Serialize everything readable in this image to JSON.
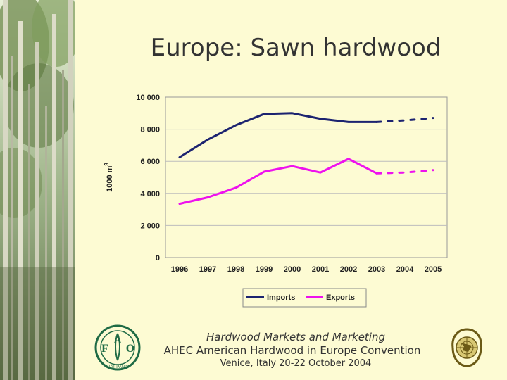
{
  "title": "Europe: Sawn hardwood",
  "footer": {
    "line1": "Hardwood Markets and Marketing",
    "line2": "AHEC American Hardwood in Europe Convention",
    "line3": "Venice, Italy 20-22 October 2004"
  },
  "logos": {
    "fao_letters": [
      "F",
      "A",
      "O"
    ],
    "fao_motto": "FIAT PANIS",
    "un_emblem": "un-emblem-icon"
  },
  "colors": {
    "background": "#fdfbd3",
    "imports": "#1c2370",
    "exports": "#ee11ee",
    "plot_area": "#fdfbd3",
    "gridline": "#bdbdbd"
  },
  "chart_data": {
    "type": "line",
    "title": "",
    "xlabel": "",
    "ylabel": "1000 m",
    "ylabel_superscript": "3",
    "categories": [
      "1996",
      "1997",
      "1998",
      "1999",
      "2000",
      "2001",
      "2002",
      "2003",
      "2004",
      "2005"
    ],
    "ylim": [
      0,
      10000
    ],
    "yticks": [
      0,
      2000,
      4000,
      6000,
      8000,
      10000
    ],
    "ytick_labels": [
      "0",
      "2 000",
      "4 000",
      "6 000",
      "8 000",
      "10 000"
    ],
    "grid": true,
    "legend_position": "bottom",
    "series": [
      {
        "name": "Imports",
        "values": [
          6250,
          7350,
          8250,
          8950,
          9000,
          8650,
          8450,
          8450,
          8550,
          8700
        ],
        "forecast_from_index": 7
      },
      {
        "name": "Exports",
        "values": [
          3350,
          3750,
          4350,
          5350,
          5700,
          5300,
          6150,
          5250,
          5300,
          5450
        ],
        "forecast_from_index": 7
      }
    ]
  }
}
